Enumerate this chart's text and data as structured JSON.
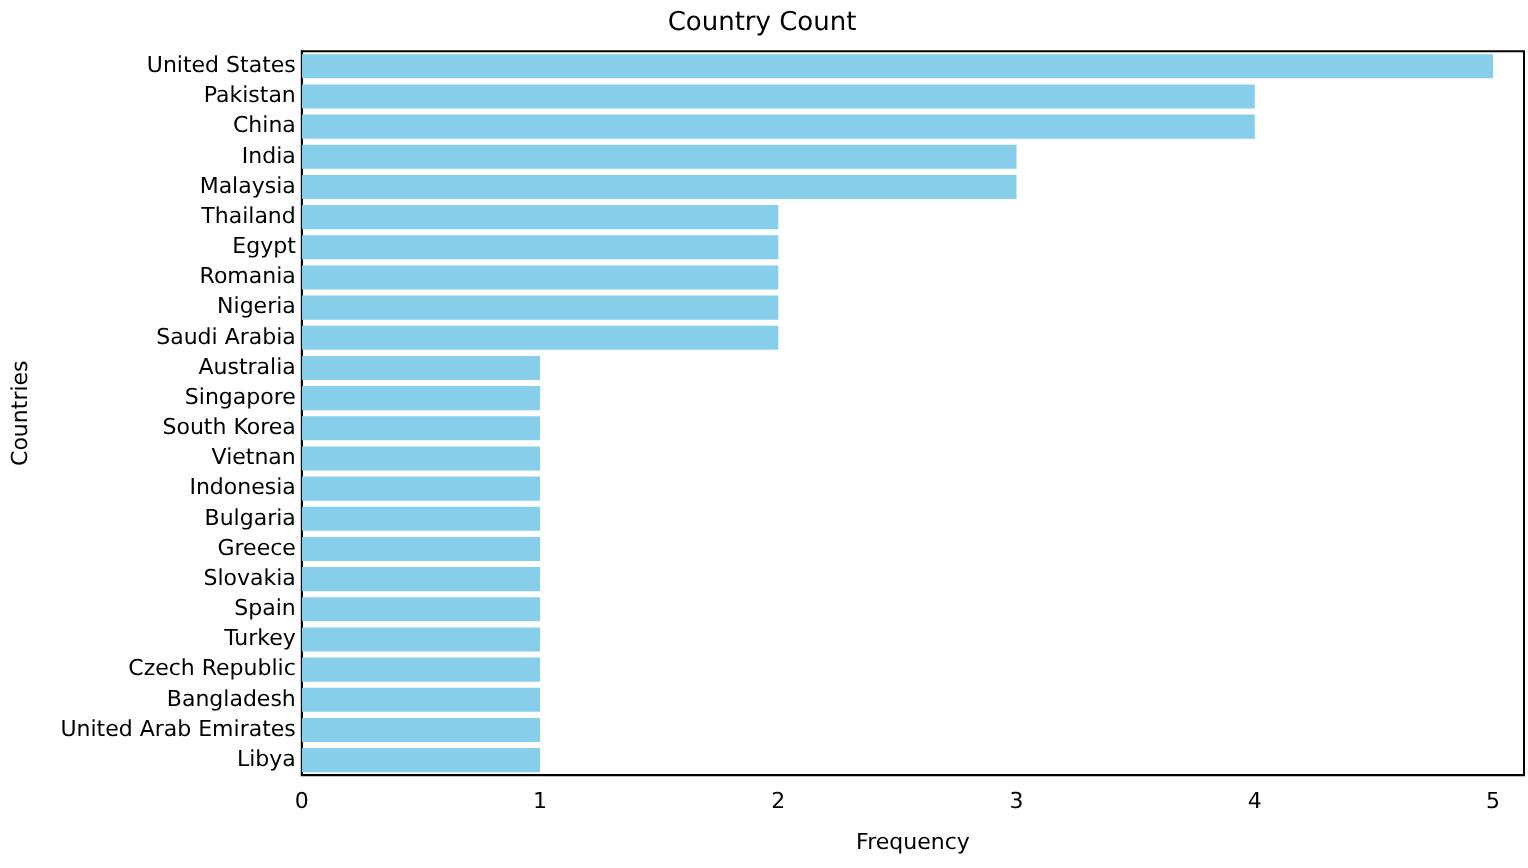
{
  "chart_data": {
    "type": "bar",
    "orientation": "horizontal",
    "title": "Country Count",
    "xlabel": "Frequency",
    "ylabel": "Countries",
    "categories": [
      "United States",
      "Pakistan",
      "China",
      "India",
      "Malaysia",
      "Thailand",
      "Egypt",
      "Romania",
      "Nigeria",
      "Saudi Arabia",
      "Australia",
      "Singapore",
      "South Korea",
      "Vietnan",
      "Indonesia",
      "Bulgaria",
      "Greece",
      "Slovakia",
      "Spain",
      "Turkey",
      "Czech Republic",
      "Bangladesh",
      "United Arab Emirates",
      "Libya"
    ],
    "values": [
      5,
      4,
      4,
      3,
      3,
      2,
      2,
      2,
      2,
      2,
      1,
      1,
      1,
      1,
      1,
      1,
      1,
      1,
      1,
      1,
      1,
      1,
      1,
      1
    ],
    "color": "#87ceeb",
    "xlim": [
      0,
      5.13
    ],
    "xticks": [
      0,
      1,
      2,
      3,
      4,
      5
    ],
    "grid": false,
    "legend": false
  }
}
